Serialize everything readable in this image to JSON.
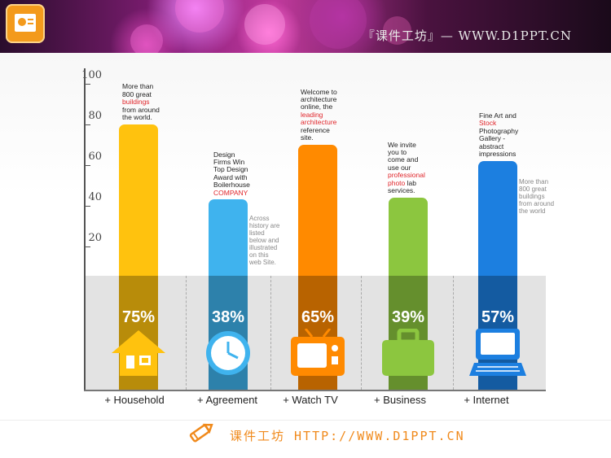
{
  "header": {
    "title": "『课件工坊』— WWW.D1PPT.CN"
  },
  "footer": {
    "text": "课件工坊 HTTP://WWW.D1PPT.CN"
  },
  "chart_data": {
    "type": "bar",
    "categories": [
      "+ Household",
      "+ Agreement",
      "+ Watch TV",
      "+ Business",
      "+ Internet"
    ],
    "values": [
      75,
      38,
      65,
      39,
      57
    ],
    "value_labels": [
      "75%",
      "38%",
      "65%",
      "39%",
      "57%"
    ],
    "y_ticks": [
      "100",
      "80",
      "60",
      "40",
      "20"
    ],
    "ylim": [
      0,
      100
    ],
    "colors": [
      "#ffc20e",
      "#3fb3ee",
      "#ff8a00",
      "#8cc63f",
      "#1c7fe0"
    ],
    "icons": [
      "house-icon",
      "clock-icon",
      "tv-icon",
      "briefcase-icon",
      "computer-icon"
    ],
    "annotations": [
      {
        "before": "More than 800 great ",
        "highlight": "buildings",
        "after": " from around the world."
      },
      {
        "before": "Design Firms Win Top Design Award with Boilerhouse ",
        "highlight": "COMPANY",
        "after": ""
      },
      {
        "before": "Welcome to architecture online, the ",
        "highlight": "leading architecture",
        "after": " reference site."
      },
      {
        "before": "We invite you to come and use our ",
        "highlight": "professional photo",
        "after": " lab services."
      },
      {
        "before": "Fine Art and ",
        "highlight": "Stock",
        "after": " Photography Gallery - abstract impressions"
      }
    ],
    "side_notes": [
      "Across history are listed below and illustrated on this web Site.",
      "More than 800 great buildings from around the world"
    ]
  }
}
